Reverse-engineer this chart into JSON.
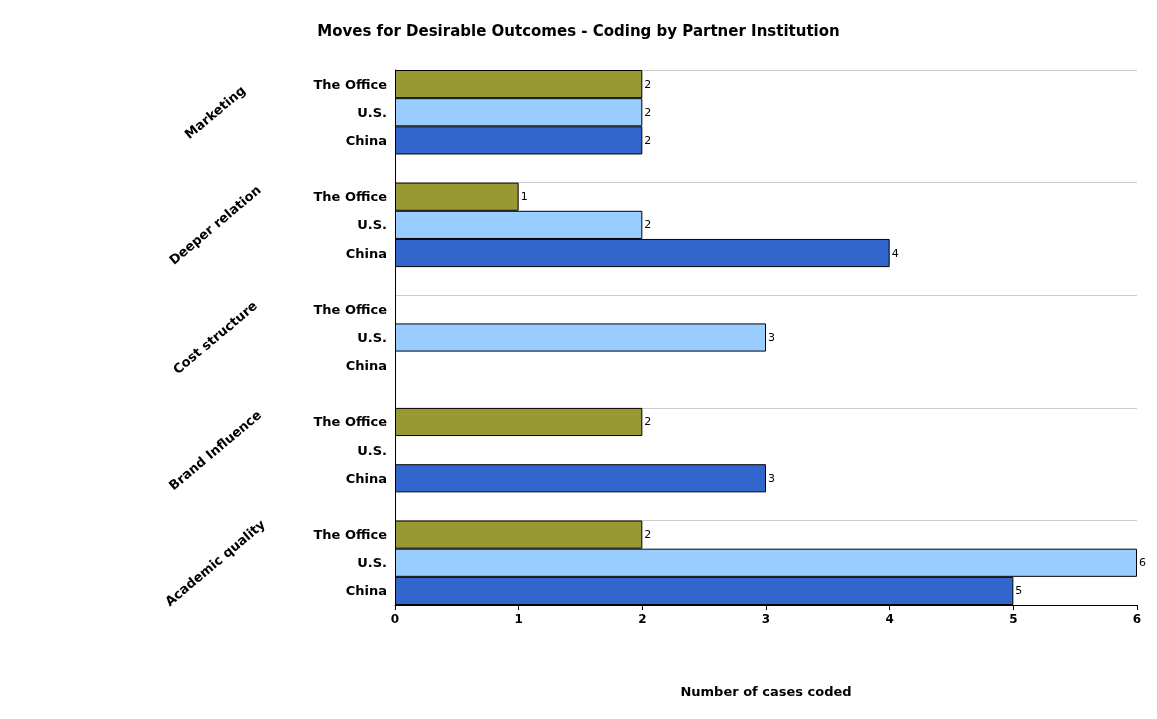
{
  "chart_data": {
    "type": "bar",
    "orientation": "horizontal",
    "title": "Moves for Desirable Outcomes - Coding by Partner Institution",
    "xlabel": "Number of cases coded",
    "categories": [
      "Marketing",
      "Deeper relation",
      "Cost structure",
      "Brand Influence",
      "Academic quality"
    ],
    "series": [
      {
        "name": "The Office",
        "color": "#999933",
        "values": [
          2,
          1,
          null,
          2,
          2
        ]
      },
      {
        "name": "U.S.",
        "color": "#99ccff",
        "values": [
          2,
          2,
          3,
          null,
          6
        ]
      },
      {
        "name": "China",
        "color": "#3366cc",
        "values": [
          2,
          4,
          null,
          3,
          5
        ]
      }
    ],
    "xlim": [
      0,
      6
    ],
    "xticks": [
      0,
      1,
      2,
      3,
      4,
      5,
      6
    ],
    "grid": "y",
    "legend": false,
    "data_labels": true
  }
}
